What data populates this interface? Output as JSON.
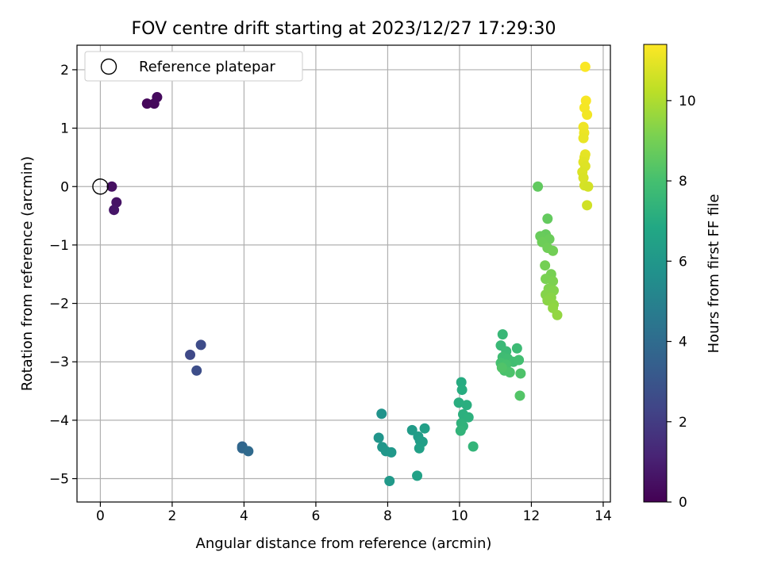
{
  "chart_data": {
    "type": "scatter",
    "title": "FOV centre drift starting at 2023/12/27 17:29:30",
    "xlabel": "Angular distance from reference (arcmin)",
    "ylabel": "Rotation from reference (arcmin)",
    "xlim": [
      -0.65,
      14.2
    ],
    "ylim": [
      -5.4,
      2.42
    ],
    "xticks": [
      0,
      2,
      4,
      6,
      8,
      10,
      12,
      14
    ],
    "yticks": [
      -5,
      -4,
      -3,
      -2,
      -1,
      0,
      1,
      2
    ],
    "grid": true,
    "legend": {
      "placement": "upper-left",
      "label": "Reference platepar"
    },
    "reference_point": {
      "x": 0,
      "y": 0
    },
    "colorbar": {
      "label": "Hours from first FF file",
      "range": [
        0,
        11.4
      ],
      "ticks": [
        0,
        2,
        4,
        6,
        8,
        10
      ],
      "colormap": "viridis"
    },
    "points": [
      {
        "x": 1.3,
        "y": 1.42,
        "h": 0.2
      },
      {
        "x": 1.5,
        "y": 1.42,
        "h": 0.25
      },
      {
        "x": 1.58,
        "y": 1.53,
        "h": 0.3
      },
      {
        "x": 0.32,
        "y": 0.0,
        "h": 0.5
      },
      {
        "x": 0.45,
        "y": -0.27,
        "h": 0.6
      },
      {
        "x": 0.38,
        "y": -0.4,
        "h": 0.7
      },
      {
        "x": 2.5,
        "y": -2.88,
        "h": 2.5
      },
      {
        "x": 2.8,
        "y": -2.71,
        "h": 2.6
      },
      {
        "x": 2.68,
        "y": -3.15,
        "h": 2.7
      },
      {
        "x": 3.95,
        "y": -4.45,
        "h": 3.7
      },
      {
        "x": 3.95,
        "y": -4.48,
        "h": 3.8
      },
      {
        "x": 4.12,
        "y": -4.53,
        "h": 3.9
      },
      {
        "x": 7.83,
        "y": -3.89,
        "h": 5.8
      },
      {
        "x": 7.75,
        "y": -4.3,
        "h": 5.9
      },
      {
        "x": 7.85,
        "y": -4.46,
        "h": 5.95
      },
      {
        "x": 7.95,
        "y": -4.53,
        "h": 6.0
      },
      {
        "x": 8.1,
        "y": -4.55,
        "h": 6.05
      },
      {
        "x": 8.05,
        "y": -5.04,
        "h": 6.1
      },
      {
        "x": 8.68,
        "y": -4.17,
        "h": 6.2
      },
      {
        "x": 8.85,
        "y": -4.28,
        "h": 6.25
      },
      {
        "x": 8.9,
        "y": -4.35,
        "h": 6.3
      },
      {
        "x": 8.97,
        "y": -4.37,
        "h": 6.35
      },
      {
        "x": 9.03,
        "y": -4.14,
        "h": 6.4
      },
      {
        "x": 8.88,
        "y": -4.48,
        "h": 6.45
      },
      {
        "x": 8.82,
        "y": -4.95,
        "h": 6.5
      },
      {
        "x": 10.05,
        "y": -3.35,
        "h": 7.0
      },
      {
        "x": 10.07,
        "y": -3.48,
        "h": 7.05
      },
      {
        "x": 9.98,
        "y": -3.7,
        "h": 7.1
      },
      {
        "x": 10.2,
        "y": -3.74,
        "h": 7.15
      },
      {
        "x": 10.1,
        "y": -3.9,
        "h": 7.2
      },
      {
        "x": 10.25,
        "y": -3.95,
        "h": 7.25
      },
      {
        "x": 10.05,
        "y": -4.05,
        "h": 7.3
      },
      {
        "x": 10.1,
        "y": -4.1,
        "h": 7.35
      },
      {
        "x": 10.03,
        "y": -4.18,
        "h": 7.4
      },
      {
        "x": 10.38,
        "y": -4.45,
        "h": 7.45
      },
      {
        "x": 11.2,
        "y": -2.53,
        "h": 7.6
      },
      {
        "x": 11.15,
        "y": -2.72,
        "h": 7.65
      },
      {
        "x": 11.3,
        "y": -2.82,
        "h": 7.7
      },
      {
        "x": 11.6,
        "y": -2.77,
        "h": 7.75
      },
      {
        "x": 11.2,
        "y": -2.92,
        "h": 7.8
      },
      {
        "x": 11.35,
        "y": -2.95,
        "h": 7.85
      },
      {
        "x": 11.5,
        "y": -3.0,
        "h": 7.9
      },
      {
        "x": 11.65,
        "y": -2.97,
        "h": 7.95
      },
      {
        "x": 11.15,
        "y": -3.02,
        "h": 8.0
      },
      {
        "x": 11.3,
        "y": -3.05,
        "h": 8.05
      },
      {
        "x": 11.25,
        "y": -3.15,
        "h": 8.1
      },
      {
        "x": 11.4,
        "y": -3.18,
        "h": 8.15
      },
      {
        "x": 11.7,
        "y": -3.2,
        "h": 8.2
      },
      {
        "x": 11.18,
        "y": -3.1,
        "h": 8.25
      },
      {
        "x": 11.68,
        "y": -3.58,
        "h": 8.3
      },
      {
        "x": 12.18,
        "y": 0.0,
        "h": 8.6
      },
      {
        "x": 12.45,
        "y": -0.55,
        "h": 8.65
      },
      {
        "x": 12.4,
        "y": -0.82,
        "h": 8.7
      },
      {
        "x": 12.25,
        "y": -0.85,
        "h": 8.75
      },
      {
        "x": 12.5,
        "y": -0.9,
        "h": 8.8
      },
      {
        "x": 12.3,
        "y": -0.95,
        "h": 8.85
      },
      {
        "x": 12.45,
        "y": -1.05,
        "h": 8.9
      },
      {
        "x": 12.6,
        "y": -1.1,
        "h": 8.95
      },
      {
        "x": 12.38,
        "y": -1.35,
        "h": 9.0
      },
      {
        "x": 12.55,
        "y": -1.5,
        "h": 9.05
      },
      {
        "x": 12.4,
        "y": -1.58,
        "h": 9.1
      },
      {
        "x": 12.6,
        "y": -1.62,
        "h": 9.15
      },
      {
        "x": 12.48,
        "y": -1.75,
        "h": 9.2
      },
      {
        "x": 12.62,
        "y": -1.78,
        "h": 9.25
      },
      {
        "x": 12.4,
        "y": -1.85,
        "h": 9.3
      },
      {
        "x": 12.55,
        "y": -1.9,
        "h": 9.35
      },
      {
        "x": 12.45,
        "y": -1.95,
        "h": 9.4
      },
      {
        "x": 12.62,
        "y": -2.02,
        "h": 9.45
      },
      {
        "x": 12.6,
        "y": -2.08,
        "h": 9.5
      },
      {
        "x": 12.72,
        "y": -2.2,
        "h": 9.55
      },
      {
        "x": 13.5,
        "y": 2.05,
        "h": 11.35
      },
      {
        "x": 13.52,
        "y": 1.47,
        "h": 11.3
      },
      {
        "x": 13.48,
        "y": 1.35,
        "h": 11.25
      },
      {
        "x": 13.55,
        "y": 1.23,
        "h": 11.2
      },
      {
        "x": 13.45,
        "y": 1.02,
        "h": 11.15
      },
      {
        "x": 13.47,
        "y": 0.92,
        "h": 11.1
      },
      {
        "x": 13.45,
        "y": 0.83,
        "h": 11.05
      },
      {
        "x": 13.5,
        "y": 0.55,
        "h": 11.0
      },
      {
        "x": 13.48,
        "y": 0.5,
        "h": 10.95
      },
      {
        "x": 13.45,
        "y": 0.42,
        "h": 10.9
      },
      {
        "x": 13.5,
        "y": 0.35,
        "h": 10.85
      },
      {
        "x": 13.42,
        "y": 0.25,
        "h": 10.8
      },
      {
        "x": 13.45,
        "y": 0.15,
        "h": 10.75
      },
      {
        "x": 13.48,
        "y": 0.02,
        "h": 10.7
      },
      {
        "x": 13.58,
        "y": 0.0,
        "h": 10.65
      },
      {
        "x": 13.55,
        "y": -0.32,
        "h": 10.6
      }
    ]
  }
}
